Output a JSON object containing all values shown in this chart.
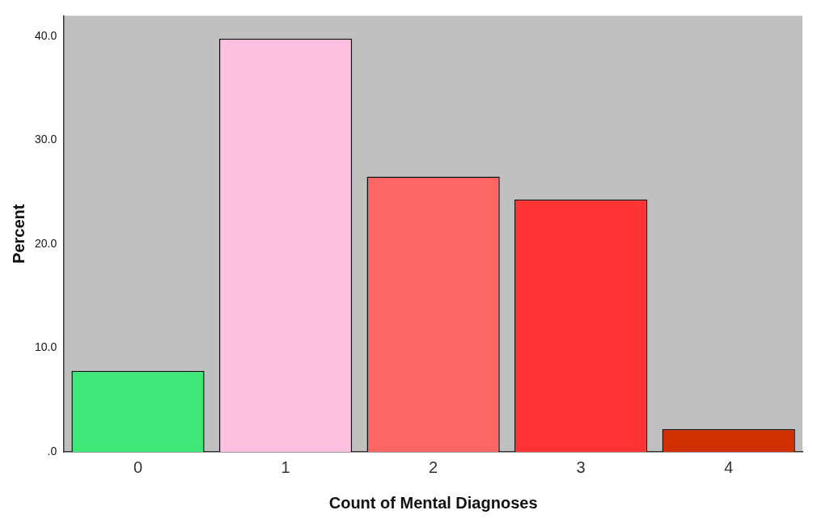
{
  "chart_data": {
    "type": "bar",
    "xlabel": "Count of Mental Diagnoses",
    "ylabel": "Percent",
    "categories": [
      "0",
      "1",
      "2",
      "3",
      "4"
    ],
    "values": [
      7.8,
      39.8,
      26.5,
      24.3,
      2.2
    ],
    "colors": [
      "#40e87a",
      "#fdc0e0",
      "#fe6666",
      "#fe3333",
      "#d03000"
    ],
    "ylim": [
      0,
      42
    ],
    "yticks": [
      {
        "value": 0,
        "label": ".0"
      },
      {
        "value": 10,
        "label": "10.0"
      },
      {
        "value": 20,
        "label": "20.0"
      },
      {
        "value": 30,
        "label": "30.0"
      },
      {
        "value": 40,
        "label": "40.0"
      }
    ],
    "grid": false,
    "legend": false
  }
}
